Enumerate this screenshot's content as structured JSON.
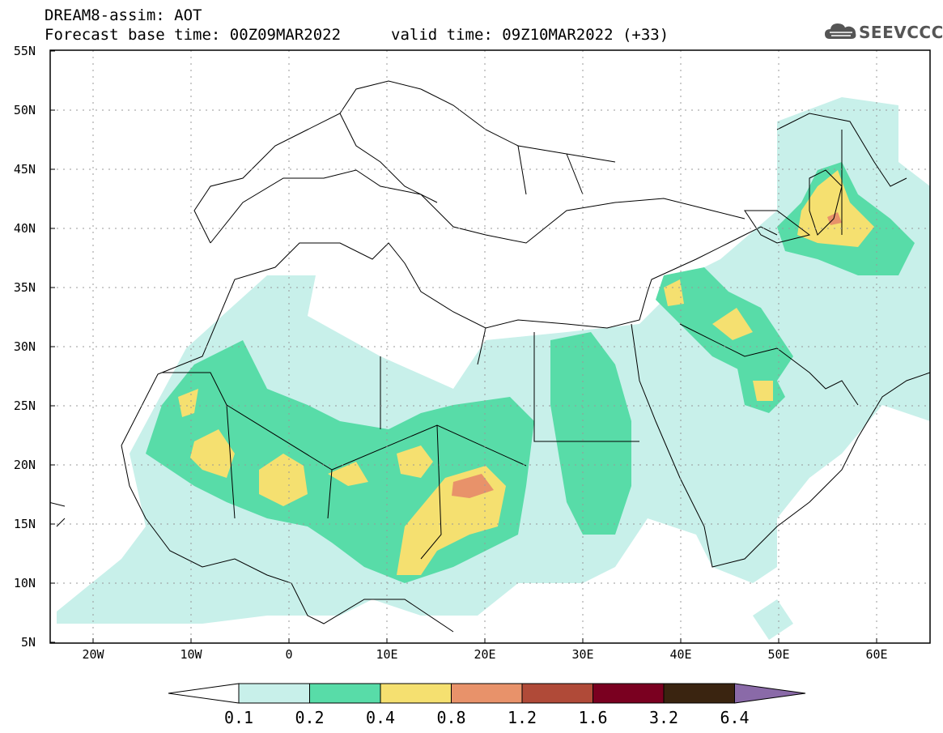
{
  "header": {
    "title": "DREAM8-assim: AOT",
    "base_time": "Forecast base time: 00Z09MAR2022",
    "valid_time": "valid time: 09Z10MAR2022 (+33)",
    "logo_text": "SEEVCCC"
  },
  "map": {
    "lat_labels": [
      "55N",
      "50N",
      "45N",
      "40N",
      "35N",
      "30N",
      "25N",
      "20N",
      "15N",
      "10N",
      "5N"
    ],
    "lon_labels": [
      "20W",
      "10W",
      "0",
      "10E",
      "20E",
      "30E",
      "40E",
      "50E",
      "60E"
    ],
    "extent": {
      "lon_min": -25,
      "lon_max": 65,
      "lat_min": 5,
      "lat_max": 55
    },
    "grid": "dotted"
  },
  "colorbar": {
    "ticks": [
      "0.1",
      "0.2",
      "0.4",
      "0.8",
      "1.2",
      "1.6",
      "3.2",
      "6.4"
    ],
    "colors": [
      "#c8f0ea",
      "#58dca8",
      "#f5e070",
      "#e8926a",
      "#b04a38",
      "#7a0020",
      "#3a2410",
      "#8a6aa8"
    ]
  }
}
